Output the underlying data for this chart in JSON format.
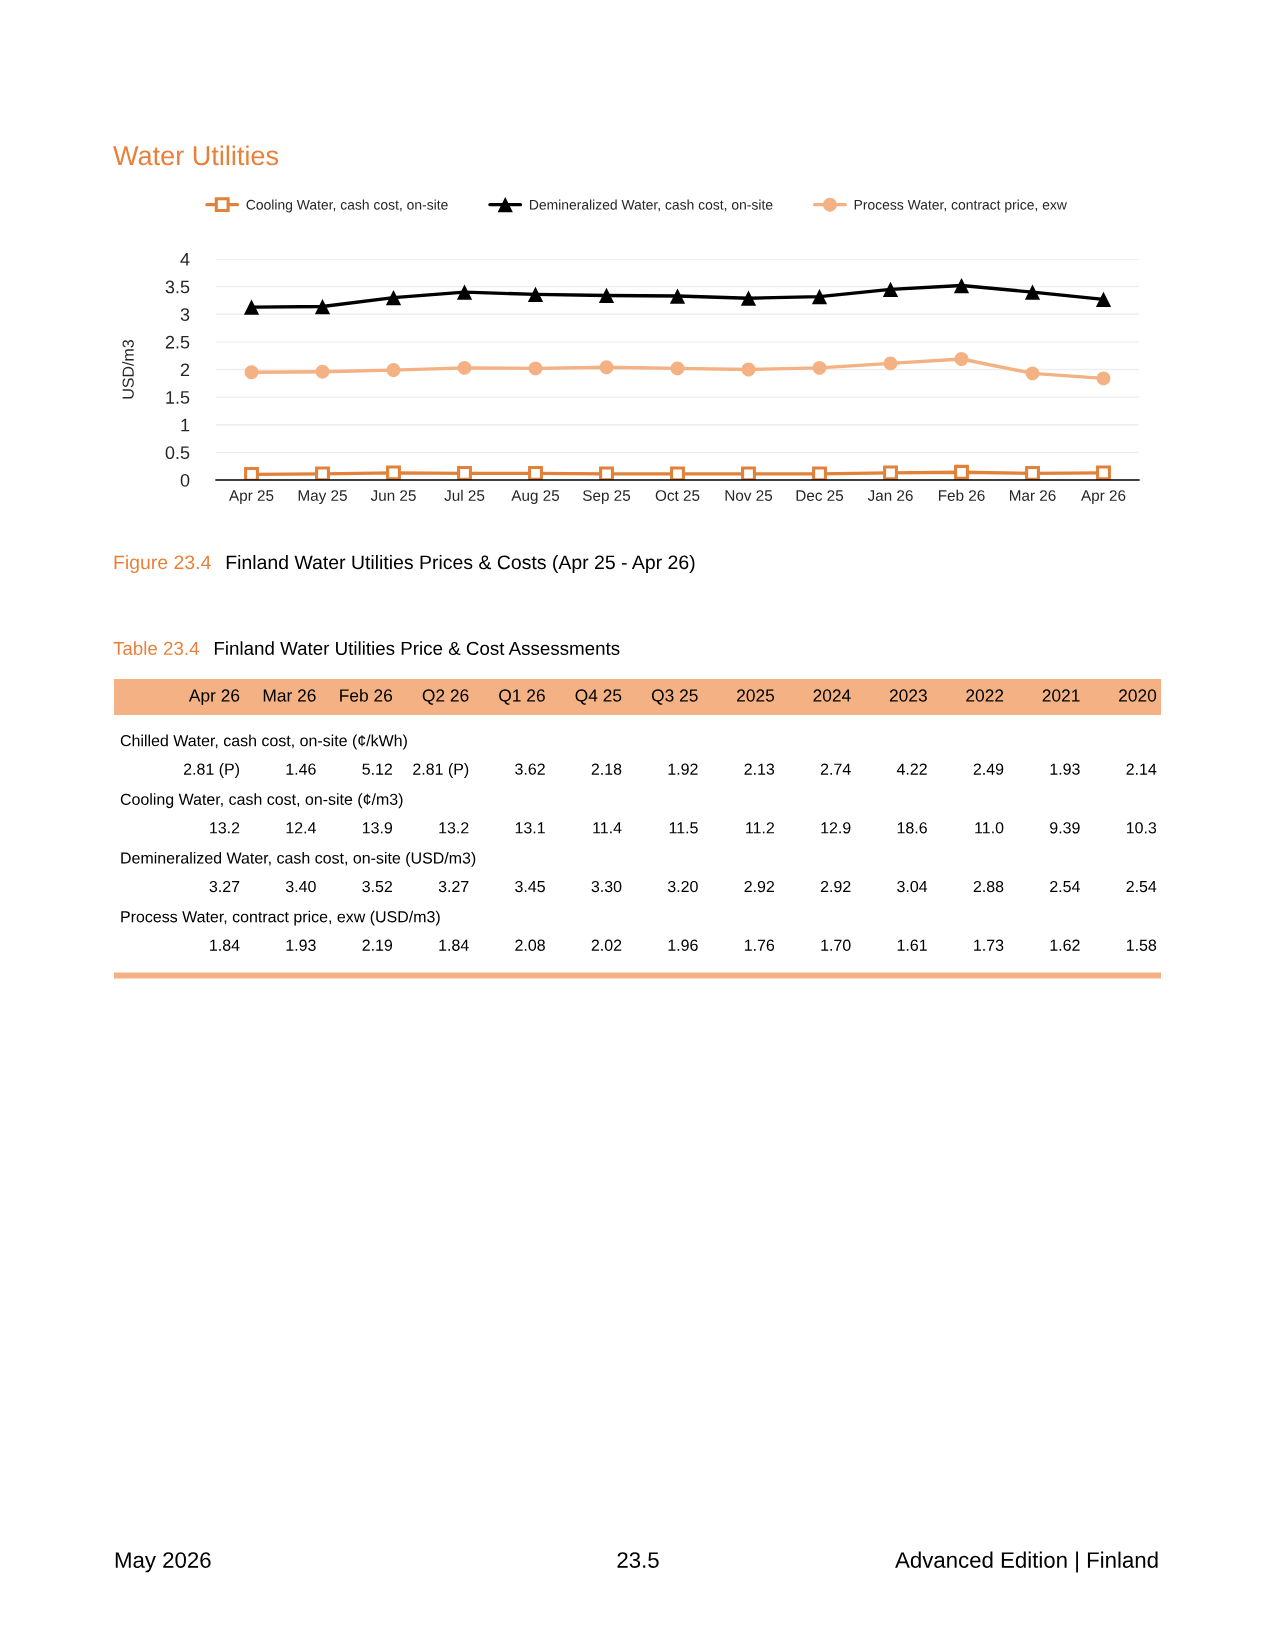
{
  "chart_data": [
    {
      "type": "line",
      "title": "Water Utilities",
      "ylabel": "USD/m3",
      "categories": [
        "Apr 25",
        "May 25",
        "Jun 25",
        "Jul 25",
        "Aug 25",
        "Sep 25",
        "Oct 25",
        "Nov 25",
        "Dec 25",
        "Jan 26",
        "Feb 26",
        "Mar 26",
        "Apr 26"
      ],
      "ylim": [
        0,
        4
      ],
      "yticks": [
        0,
        0.5,
        1,
        1.5,
        2,
        2.5,
        3,
        3.5,
        4
      ],
      "grid": "y",
      "legend": "top",
      "series": [
        {
          "name": "Cooling Water, cash cost, on-site",
          "color": "#e2813a",
          "marker": "square",
          "values": [
            0.1,
            0.11,
            0.13,
            0.12,
            0.12,
            0.11,
            0.11,
            0.11,
            0.11,
            0.13,
            0.14,
            0.12,
            0.13
          ]
        },
        {
          "name": "Demineralized Water, cash cost, on-site",
          "color": "#000000",
          "marker": "triangle",
          "values": [
            3.13,
            3.14,
            3.3,
            3.4,
            3.36,
            3.34,
            3.33,
            3.29,
            3.32,
            3.45,
            3.52,
            3.4,
            3.27
          ]
        },
        {
          "name": "Process Water, contract price, exw",
          "color": "#f4b183",
          "marker": "circle",
          "values": [
            1.95,
            1.96,
            1.99,
            2.03,
            2.02,
            2.04,
            2.02,
            2.0,
            2.03,
            2.11,
            2.19,
            1.93,
            1.84
          ]
        }
      ],
      "annotations": [
        "Figure 23.4",
        "Finland Water Utilities Prices & Costs (Apr 25 - Apr 26)"
      ]
    },
    {
      "type": "heatmap",
      "title": "Table 23.4",
      "subtitle": "Finland Water Utilities Price & Cost Assessments",
      "categories": [
        "Apr 26",
        "Mar 26",
        "Feb 26",
        "Q2 26",
        "Q1 26",
        "Q4 25",
        "Q3 25",
        "2025",
        "2024",
        "2023",
        "2022",
        "2021",
        "2020"
      ],
      "y_categories": [
        "Chilled Water, cash cost, on-site (¢/kWh)",
        "Cooling Water, cash cost, on-site (¢/m3)",
        "Demineralized Water, cash cost, on-site (USD/m3)",
        "Process Water, contract price, exw (USD/m3)"
      ],
      "data_labels": true,
      "cells": [
        [
          2.81,
          1.46,
          5.12,
          2.81,
          3.62,
          2.18,
          1.92,
          2.13,
          2.74,
          4.22,
          2.49,
          1.93,
          2.14
        ],
        [
          13.2,
          12.4,
          13.9,
          13.2,
          13.1,
          11.4,
          11.5,
          11.2,
          12.9,
          18.6,
          11.0,
          9.39,
          10.3
        ],
        [
          3.27,
          3.4,
          3.52,
          3.27,
          3.45,
          3.3,
          3.2,
          2.92,
          2.92,
          3.04,
          2.88,
          2.54,
          2.54
        ],
        [
          1.84,
          1.93,
          2.19,
          1.84,
          2.08,
          2.02,
          1.96,
          1.76,
          1.7,
          1.61,
          1.73,
          1.62,
          1.58
        ]
      ],
      "cell_labels": [
        [
          "2.81 (P)",
          "1.46",
          "5.12",
          "2.81 (P)",
          "3.62",
          "2.18",
          "1.92",
          "2.13",
          "2.74",
          "4.22",
          "2.49",
          "1.93",
          "2.14"
        ],
        [
          "13.2",
          "12.4",
          "13.9",
          "13.2",
          "13.1",
          "11.4",
          "11.5",
          "11.2",
          "12.9",
          "18.6",
          "11.0",
          "9.39",
          "10.3"
        ],
        [
          "3.27",
          "3.40",
          "3.52",
          "3.27",
          "3.45",
          "3.30",
          "3.20",
          "2.92",
          "2.92",
          "3.04",
          "2.88",
          "2.54",
          "2.54"
        ],
        [
          "1.84",
          "1.93",
          "2.19",
          "1.84",
          "2.08",
          "2.02",
          "1.96",
          "1.76",
          "1.70",
          "1.61",
          "1.73",
          "1.62",
          "1.58"
        ]
      ],
      "annotations": [
        "May 2026",
        "23.5",
        "Advanced Edition | Finland"
      ]
    }
  ]
}
